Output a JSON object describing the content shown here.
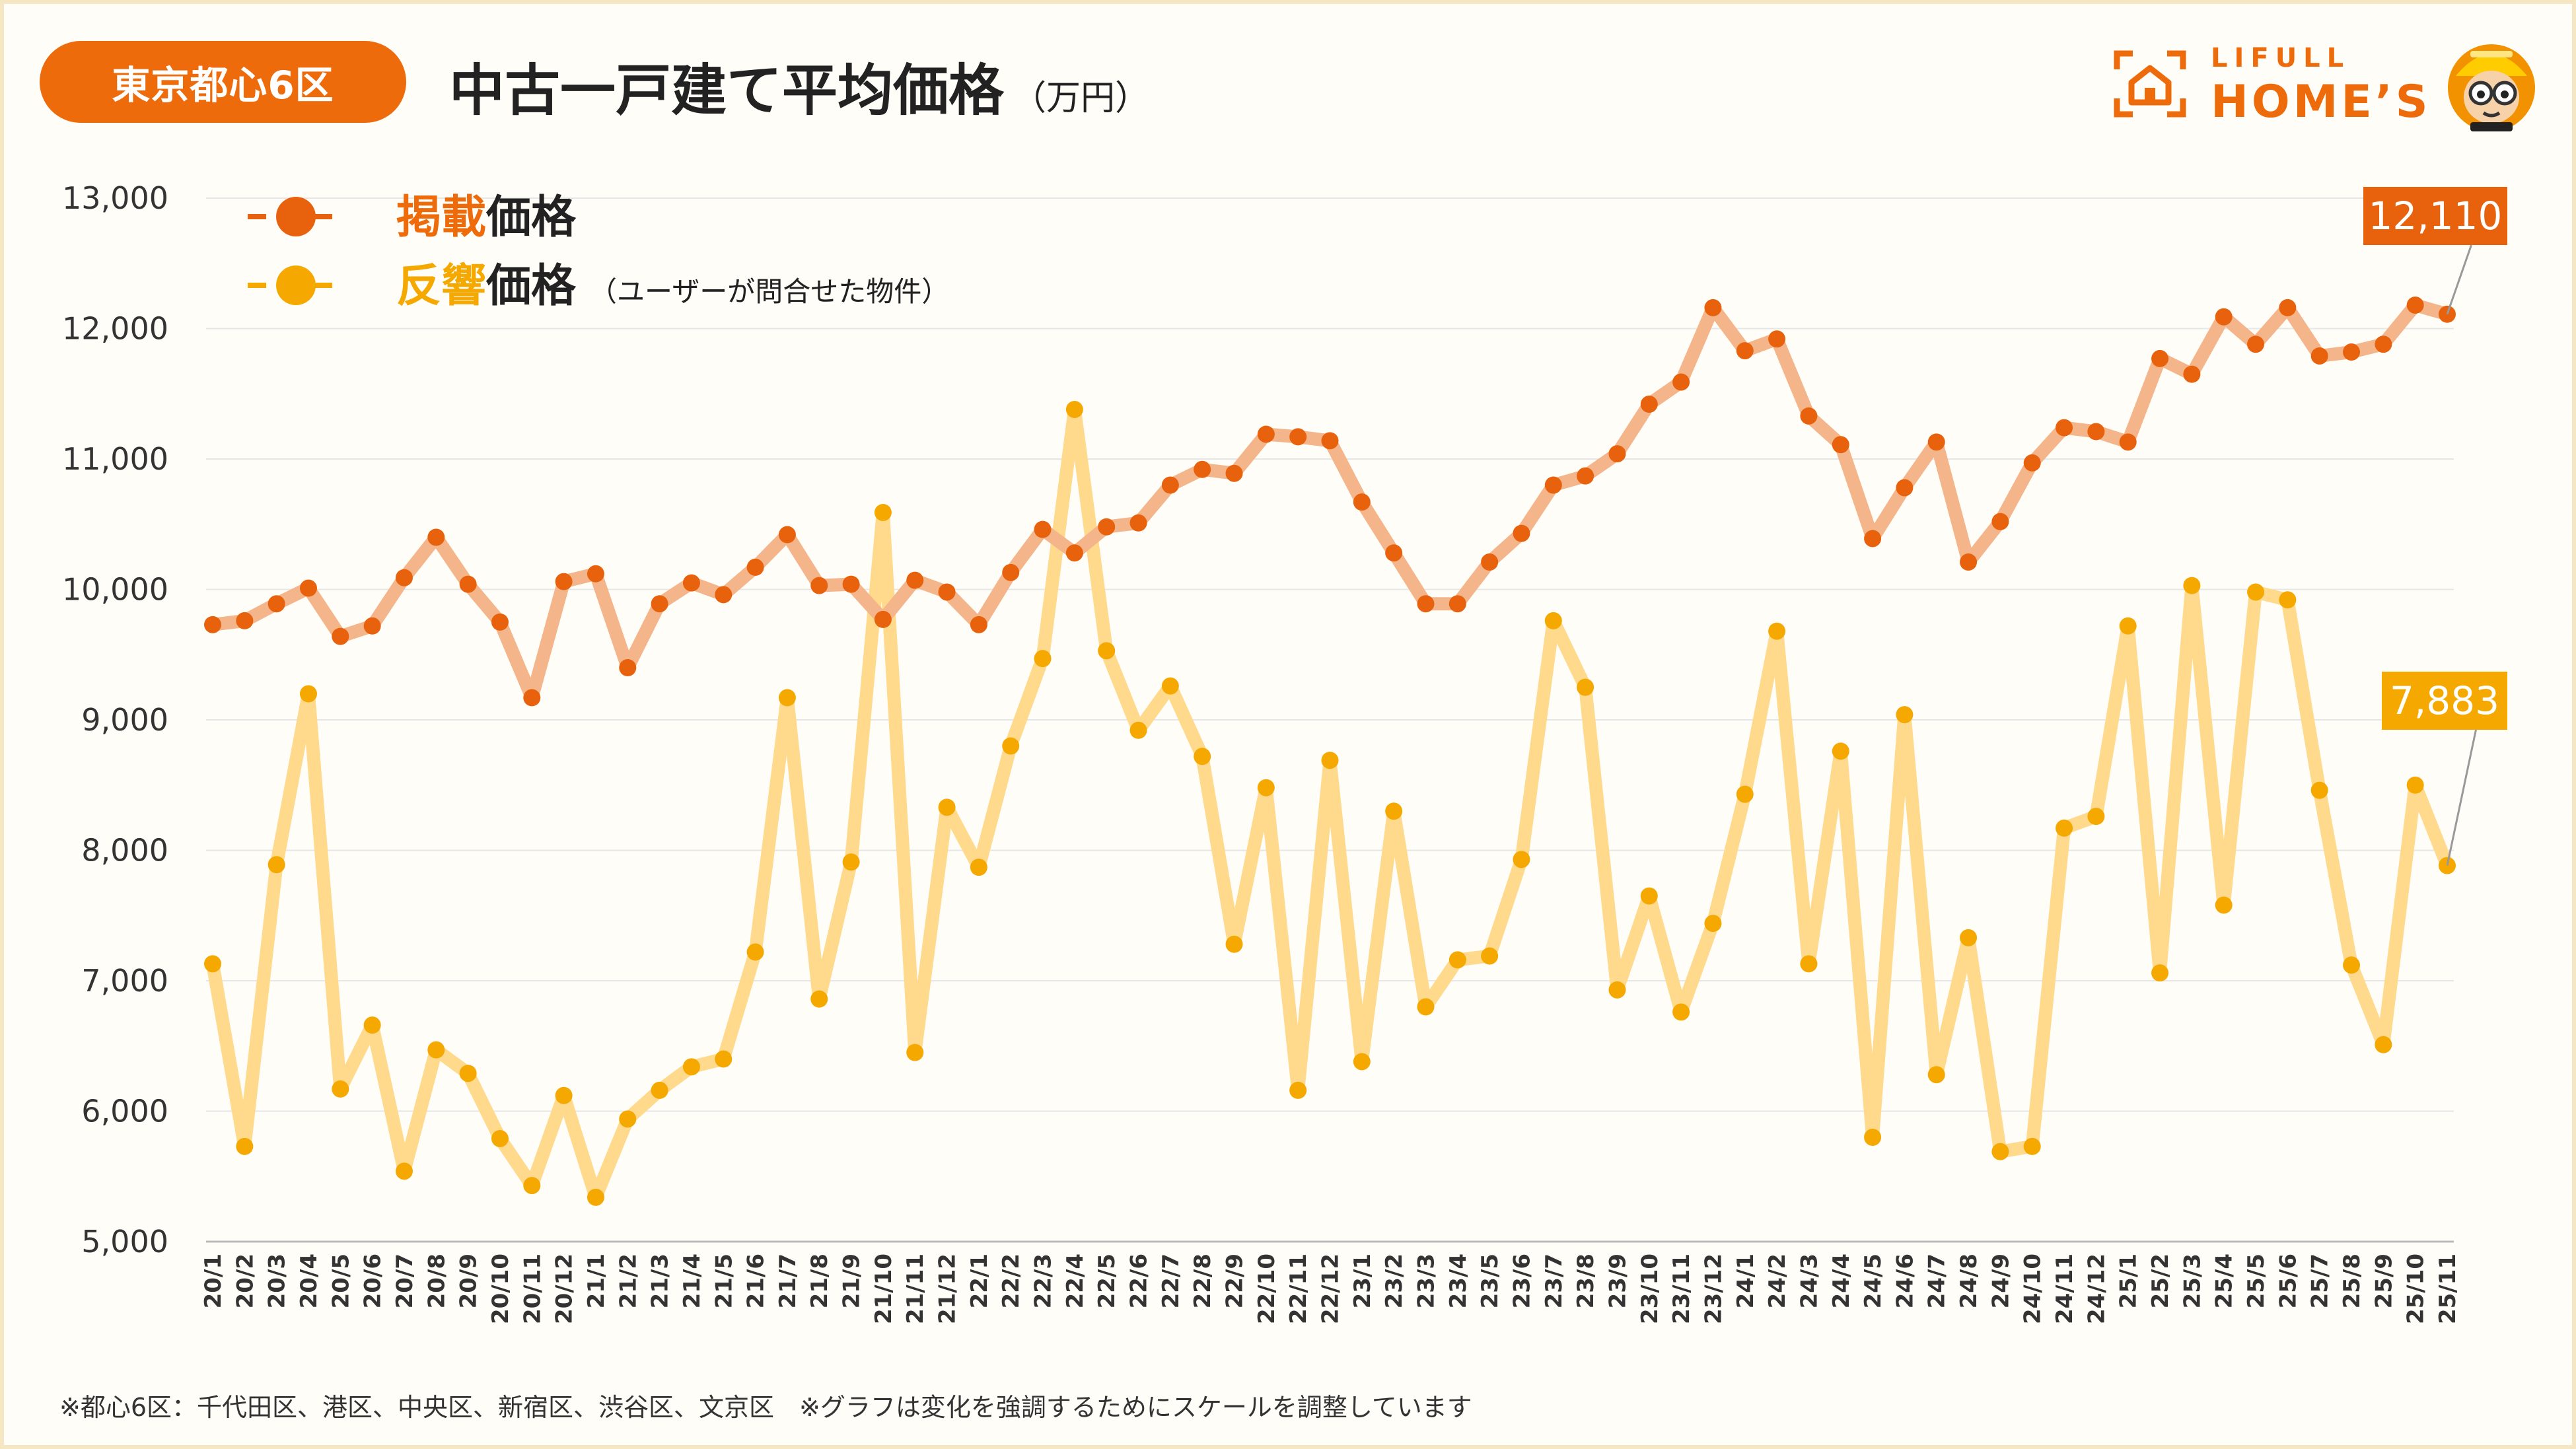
{
  "header": {
    "region": "東京都心6区",
    "title": "中古一戸建て平均価格",
    "unit": "（万円）"
  },
  "brand": {
    "top": "LIFULL",
    "main": "HOME’S"
  },
  "footnote": "※都心6区：千代田区、港区、中央区、新宿区、渋谷区、文京区　※グラフは変化を強調するためにスケールを調整しています",
  "colors": {
    "listing": "#e8610c",
    "listing_line": "#f5b58a",
    "response": "#f5a800",
    "response_line": "#ffd98c",
    "badge": "#ee6b0c"
  },
  "chart_data": {
    "type": "line",
    "ylim": [
      5000,
      13000
    ],
    "yticks": [
      "5,000",
      "6,000",
      "7,000",
      "8,000",
      "9,000",
      "10,000",
      "11,000",
      "12,000",
      "13,000"
    ],
    "grid": true,
    "legend_position": "top-left",
    "x": [
      "20/1",
      "20/2",
      "20/3",
      "20/4",
      "20/5",
      "20/6",
      "20/7",
      "20/8",
      "20/9",
      "20/10",
      "20/11",
      "20/12",
      "21/1",
      "21/2",
      "21/3",
      "21/4",
      "21/5",
      "21/6",
      "21/7",
      "21/8",
      "21/9",
      "21/10",
      "21/11",
      "21/12",
      "22/1",
      "22/2",
      "22/3",
      "22/4",
      "22/5",
      "22/6",
      "22/7",
      "22/8",
      "22/9",
      "22/10",
      "22/11",
      "22/12",
      "23/1",
      "23/2",
      "23/3",
      "23/4",
      "23/5",
      "23/6",
      "23/7",
      "23/8",
      "23/9",
      "23/10",
      "23/11",
      "23/12",
      "24/1",
      "24/2",
      "24/3",
      "24/4",
      "24/5",
      "24/6",
      "24/7",
      "24/8",
      "24/9",
      "24/10",
      "24/11",
      "24/12",
      "25/1",
      "25/2",
      "25/3",
      "25/4",
      "25/5",
      "25/6",
      "25/7",
      "25/8",
      "25/9",
      "25/10",
      "25/11"
    ],
    "series": [
      {
        "name": "掲載価格",
        "name_key": "掲載",
        "name_rest": "価格",
        "note": "",
        "end_label": "12,110",
        "values": [
          9730,
          9760,
          9890,
          10010,
          9640,
          9720,
          10090,
          10400,
          10040,
          9750,
          9170,
          10060,
          10120,
          9400,
          9890,
          10050,
          9960,
          10170,
          10420,
          10030,
          10040,
          9770,
          10070,
          9980,
          9730,
          10130,
          10460,
          10280,
          10480,
          10510,
          10800,
          10920,
          10890,
          11190,
          11170,
          11140,
          10670,
          10280,
          9890,
          9890,
          10210,
          10430,
          10800,
          10870,
          11040,
          11420,
          11590,
          12160,
          11830,
          11920,
          11330,
          11110,
          10390,
          10780,
          11130,
          10210,
          10520,
          10970,
          11240,
          11210,
          11130,
          11770,
          11650,
          12090,
          11880,
          12160,
          11790,
          11820,
          11880,
          12180,
          12110
        ]
      },
      {
        "name": "反響価格",
        "name_key": "反響",
        "name_rest": "価格",
        "note": "（ユーザーが問合せた物件）",
        "end_label": "7,883",
        "values": [
          7130,
          5730,
          7890,
          9200,
          6170,
          6660,
          5540,
          6470,
          6290,
          5790,
          5430,
          6120,
          5340,
          5940,
          6160,
          6340,
          6400,
          7220,
          9170,
          6860,
          7910,
          10590,
          6450,
          8330,
          7870,
          8800,
          9470,
          11380,
          9530,
          8920,
          9260,
          8720,
          7280,
          8480,
          6160,
          8690,
          6380,
          8300,
          6800,
          7160,
          7190,
          7930,
          9760,
          9250,
          6930,
          7650,
          6760,
          7440,
          8430,
          9680,
          7130,
          8760,
          5800,
          9040,
          6280,
          7330,
          5690,
          5730,
          8170,
          8260,
          9720,
          7060,
          10030,
          7580,
          9980,
          9920,
          8460,
          7120,
          6510,
          8500,
          7883
        ]
      }
    ]
  }
}
